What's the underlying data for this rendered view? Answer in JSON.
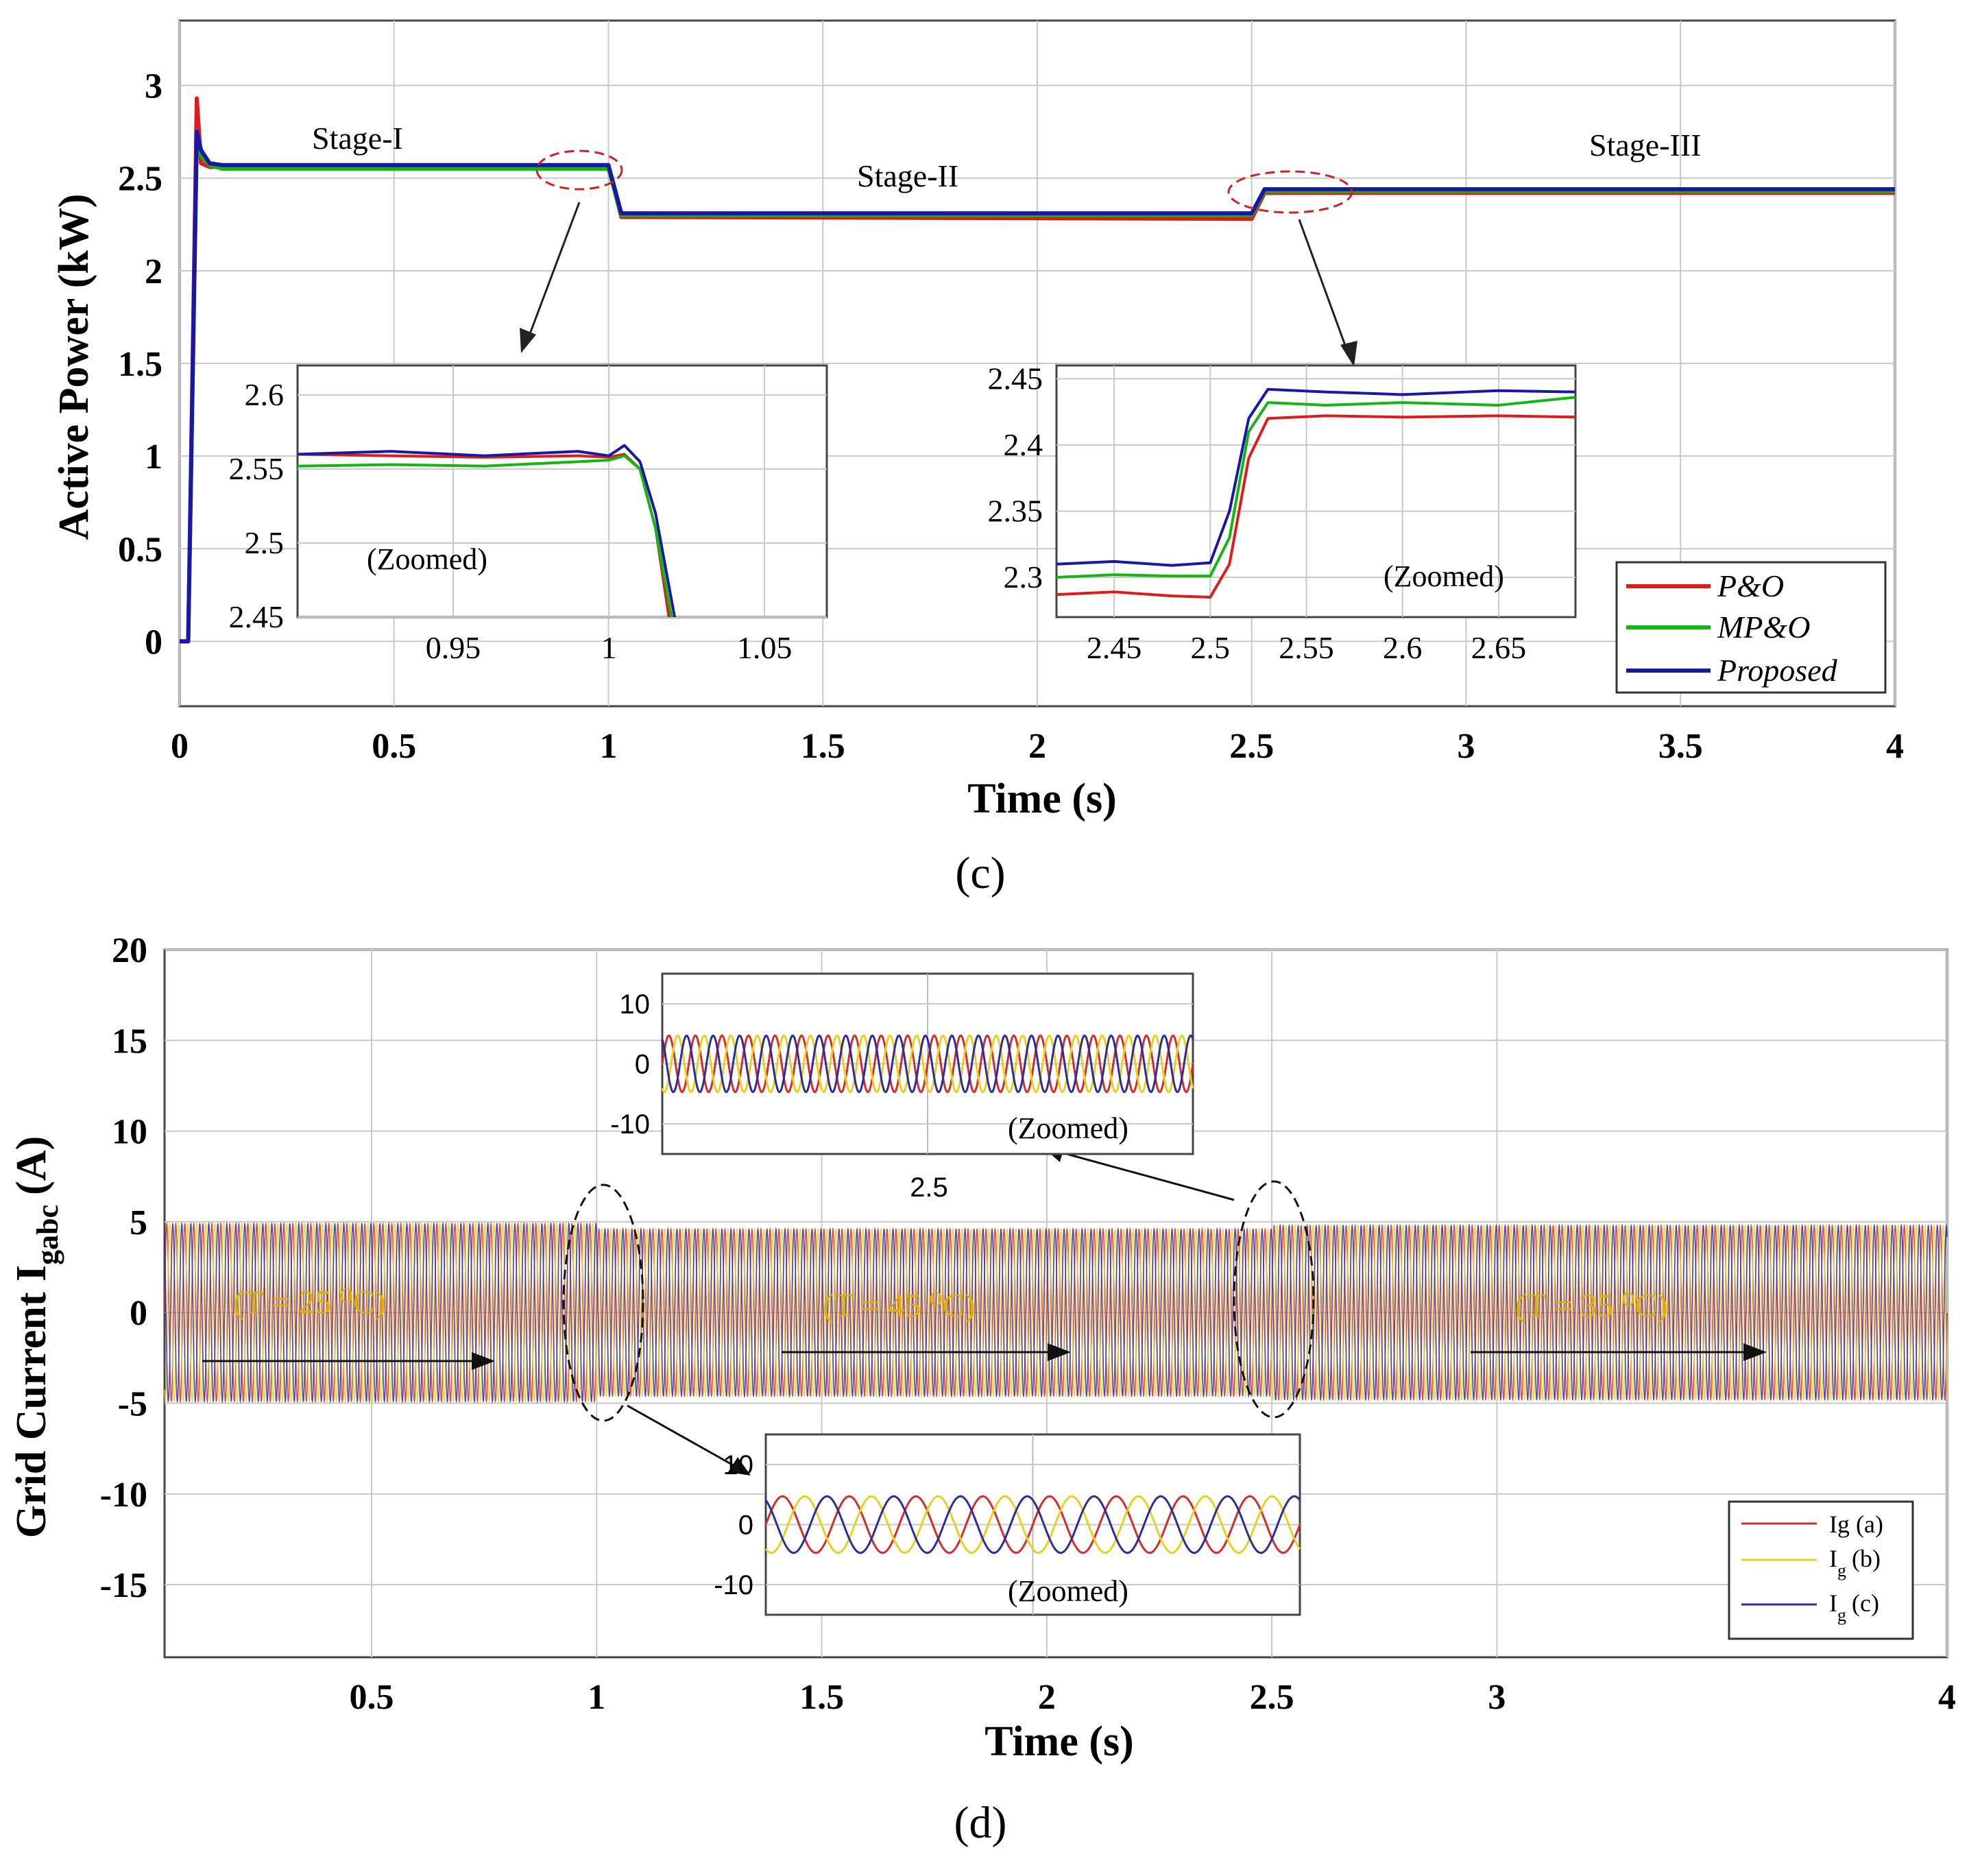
{
  "chart_data": [
    {
      "type": "line",
      "caption": "(c)",
      "xlabel": "Time (s)",
      "ylabel": "Active Power (kW)",
      "xlim": [
        0,
        4
      ],
      "ylim": [
        -0.35,
        3.35
      ],
      "xticks": [
        0,
        0.5,
        1,
        1.5,
        2,
        2.5,
        3,
        3.5,
        4
      ],
      "xtick_labels": [
        "0",
        "0.5",
        "1",
        "1.5",
        "2",
        "2.5",
        "3",
        "3.5",
        "4"
      ],
      "yticks": [
        0,
        0.5,
        1,
        1.5,
        2,
        2.5,
        3
      ],
      "ytick_labels": [
        "0",
        "0.5",
        "1",
        "1.5",
        "2",
        "2.5",
        "3"
      ],
      "grid": true,
      "annotations": [
        "Stage-I",
        "Stage-II",
        "Stage-III"
      ],
      "series": [
        {
          "name": "P&O",
          "color": "#dd1c1c",
          "x": [
            0,
            0.02,
            0.04,
            0.05,
            0.07,
            0.1,
            1.0,
            1.03,
            2.5,
            2.53,
            4.0
          ],
          "y": [
            0,
            0,
            2.93,
            2.58,
            2.56,
            2.56,
            2.56,
            2.29,
            2.28,
            2.42,
            2.42
          ]
        },
        {
          "name": "MP&O",
          "color": "#13b613",
          "x": [
            0,
            0.02,
            0.04,
            0.05,
            0.07,
            0.1,
            1.0,
            1.03,
            2.5,
            2.53,
            4.0
          ],
          "y": [
            0,
            0,
            2.7,
            2.62,
            2.57,
            2.55,
            2.55,
            2.3,
            2.3,
            2.43,
            2.43
          ]
        },
        {
          "name": "Proposed",
          "color": "#1818a8",
          "x": [
            0,
            0.02,
            0.04,
            0.05,
            0.07,
            0.1,
            1.0,
            1.03,
            2.5,
            2.53,
            4.0
          ],
          "y": [
            0,
            0,
            2.75,
            2.65,
            2.58,
            2.57,
            2.57,
            2.31,
            2.31,
            2.44,
            2.44
          ]
        }
      ],
      "legend": {
        "placement": "bottom-right",
        "entries": [
          "P&O",
          "MP&O",
          "Proposed"
        ]
      },
      "insets": [
        {
          "label": "(Zoomed)",
          "xlim": [
            0.9,
            1.07
          ],
          "ylim": [
            2.45,
            2.62
          ],
          "xticks": [
            0.95,
            1,
            1.05
          ],
          "xtick_labels": [
            "0.95",
            "1",
            "1.05"
          ],
          "yticks": [
            2.45,
            2.5,
            2.55,
            2.6
          ],
          "ytick_labels": [
            "2.45",
            "2.5",
            "2.55",
            "2.6"
          ],
          "series": [
            {
              "name": "P&O",
              "x": [
                0.9,
                0.93,
                0.96,
                0.99,
                1.0,
                1.005,
                1.01,
                1.015,
                1.02
              ],
              "y": [
                2.56,
                2.559,
                2.558,
                2.559,
                2.558,
                2.56,
                2.55,
                2.51,
                2.44
              ]
            },
            {
              "name": "MP&O",
              "x": [
                0.9,
                0.93,
                0.96,
                0.99,
                1.0,
                1.005,
                1.01,
                1.015,
                1.021
              ],
              "y": [
                2.552,
                2.553,
                2.552,
                2.555,
                2.556,
                2.559,
                2.55,
                2.51,
                2.44
              ]
            },
            {
              "name": "Proposed",
              "x": [
                0.9,
                0.93,
                0.96,
                0.99,
                1.0,
                1.005,
                1.01,
                1.015,
                1.022
              ],
              "y": [
                2.56,
                2.562,
                2.559,
                2.562,
                2.559,
                2.566,
                2.555,
                2.52,
                2.44
              ]
            }
          ]
        },
        {
          "label": "(Zoomed)",
          "xlim": [
            2.42,
            2.69
          ],
          "ylim": [
            2.27,
            2.46
          ],
          "xticks": [
            2.45,
            2.5,
            2.55,
            2.6,
            2.65
          ],
          "xtick_labels": [
            "2.45",
            "2.5",
            "2.55",
            "2.6",
            "2.65"
          ],
          "yticks": [
            2.3,
            2.35,
            2.4,
            2.45
          ],
          "ytick_labels": [
            "2.3",
            "2.35",
            "2.4",
            "2.45"
          ],
          "series": [
            {
              "name": "P&O",
              "x": [
                2.42,
                2.45,
                2.48,
                2.5,
                2.51,
                2.52,
                2.53,
                2.56,
                2.6,
                2.65,
                2.69
              ],
              "y": [
                2.287,
                2.289,
                2.286,
                2.285,
                2.31,
                2.39,
                2.42,
                2.422,
                2.421,
                2.422,
                2.421
              ]
            },
            {
              "name": "MP&O",
              "x": [
                2.42,
                2.45,
                2.48,
                2.5,
                2.51,
                2.52,
                2.53,
                2.56,
                2.6,
                2.65,
                2.69
              ],
              "y": [
                2.3,
                2.302,
                2.301,
                2.301,
                2.33,
                2.41,
                2.432,
                2.43,
                2.432,
                2.43,
                2.436
              ]
            },
            {
              "name": "Proposed",
              "x": [
                2.42,
                2.45,
                2.48,
                2.5,
                2.51,
                2.52,
                2.53,
                2.56,
                2.6,
                2.65,
                2.69
              ],
              "y": [
                2.31,
                2.312,
                2.309,
                2.311,
                2.35,
                2.42,
                2.442,
                2.44,
                2.438,
                2.441,
                2.44
              ]
            }
          ]
        }
      ]
    },
    {
      "type": "line",
      "caption": "(d)",
      "xlabel": "Time (s)",
      "ylabel": "Grid Current I",
      "ylabel_sub": "gabc",
      "ylabel_unit": "(A)",
      "xlim": [
        0.04,
        4
      ],
      "ylim": [
        -19,
        20
      ],
      "xticks": [
        0.5,
        1,
        1.5,
        2,
        2.5,
        3,
        4
      ],
      "xtick_labels": [
        "0.5",
        "1",
        "1.5",
        "2",
        "2.5",
        "3",
        "4"
      ],
      "yticks": [
        20,
        15,
        10,
        5,
        0,
        -5,
        -10,
        -15
      ],
      "ytick_labels": [
        "20",
        "15",
        "10",
        "5",
        "0",
        "-5",
        "-10",
        "-15"
      ],
      "grid": true,
      "frequency_hz": 50,
      "amplitude_segments": [
        {
          "from": 0.04,
          "to": 1.0,
          "amplitude": 4.9,
          "label": "(T = 25 ⁰C)"
        },
        {
          "from": 1.0,
          "to": 2.5,
          "amplitude": 4.6,
          "label": "(T = 45 ⁰C)"
        },
        {
          "from": 2.5,
          "to": 4.0,
          "amplitude": 4.8,
          "label": "(T = 35 ⁰C)"
        }
      ],
      "series": [
        {
          "name": "Ig (a)",
          "color": "#d62b2b",
          "phase_deg": 0
        },
        {
          "name": "Ig (b)",
          "color": "#e8d020",
          "phase_deg": -120
        },
        {
          "name": "Ig (c)",
          "color": "#2c2c9c",
          "phase_deg": 120
        }
      ],
      "legend": {
        "placement": "bottom-right",
        "entries": [
          "Ig (a)",
          "I",
          "(b)",
          "I",
          "(c)"
        ],
        "subscript": "g"
      },
      "insets": [
        {
          "label": "(Zoomed)",
          "ylim": [
            -15,
            15
          ],
          "yticks": [
            10,
            0,
            -10
          ],
          "ytick_labels": [
            "10",
            "0",
            "-10"
          ],
          "xtick_labels": [
            "2.5"
          ],
          "cycles": 20
        },
        {
          "label": "(Zoomed)",
          "ylim": [
            -15,
            15
          ],
          "yticks": [
            10,
            0,
            -10
          ],
          "ytick_labels": [
            "10",
            "0",
            "-10"
          ],
          "cycles": 8
        }
      ]
    }
  ]
}
